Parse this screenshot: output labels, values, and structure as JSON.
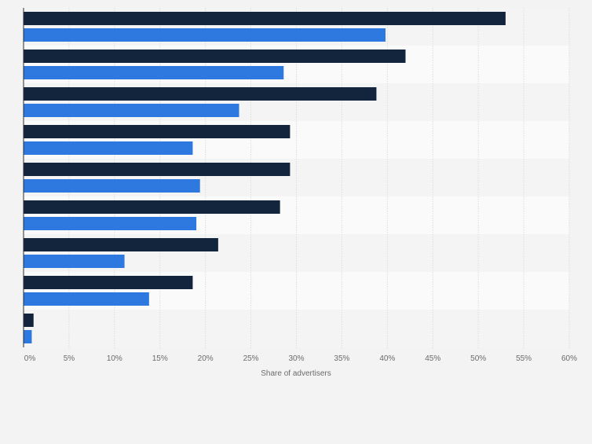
{
  "chart_data": {
    "type": "bar",
    "orientation": "horizontal",
    "categories": [
      "",
      "",
      "",
      "",
      "",
      "",
      "",
      "",
      ""
    ],
    "series": [
      {
        "color": "#13243d",
        "values": [
          53.0,
          42.0,
          38.8,
          29.3,
          29.3,
          28.2,
          21.4,
          18.6,
          1.1
        ]
      },
      {
        "color": "#2e79df",
        "values": [
          39.8,
          28.6,
          23.7,
          18.6,
          19.4,
          19.0,
          11.1,
          13.8,
          0.9
        ]
      }
    ],
    "xlabel": "Share of advertisers",
    "xlim": [
      0,
      60
    ],
    "x_ticks": [
      0,
      5,
      10,
      15,
      20,
      25,
      30,
      35,
      40,
      45,
      50,
      55,
      60
    ],
    "x_tick_labels": [
      "0%",
      "5%",
      "10%",
      "15%",
      "20%",
      "25%",
      "30%",
      "35%",
      "40%",
      "45%",
      "50%",
      "55%",
      "60%"
    ],
    "grid": true,
    "legend": "none"
  }
}
